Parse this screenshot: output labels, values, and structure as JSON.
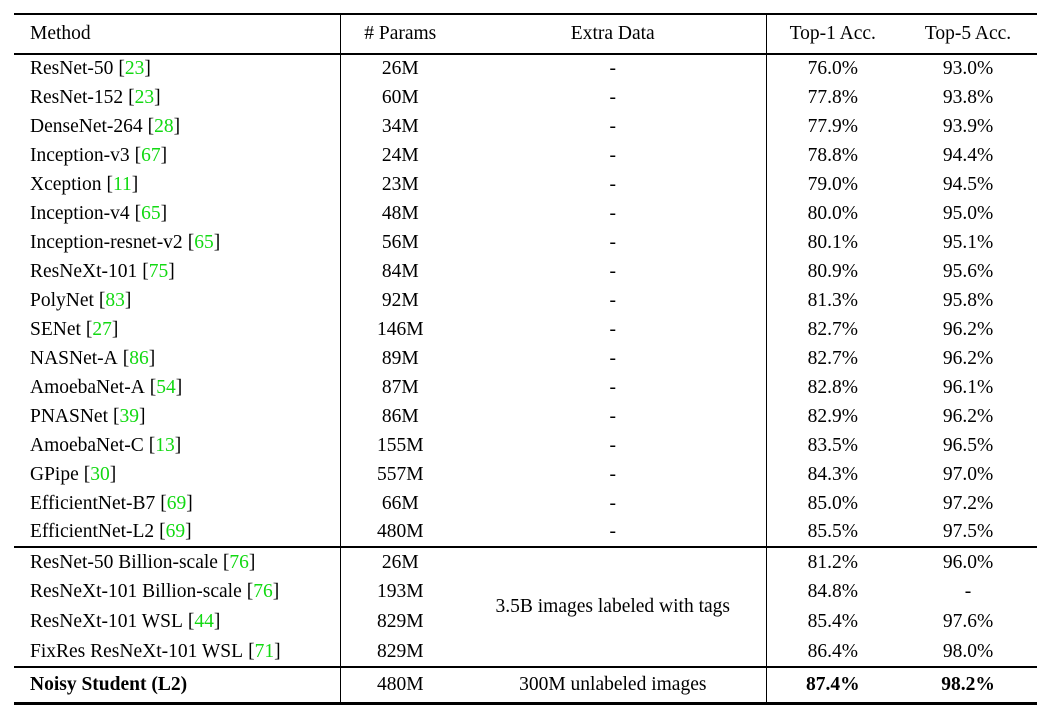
{
  "table": {
    "citation_color": "#12d912",
    "cite_brackets": [
      "[",
      "]"
    ],
    "columns": [
      "Method",
      "# Params",
      "Extra Data",
      "Top-1 Acc.",
      "Top-5 Acc."
    ],
    "sections": [
      {
        "rows": [
          {
            "method": "ResNet-50",
            "cite": "23",
            "params": "26M",
            "extra": "-",
            "top1": "76.0%",
            "top5": "93.0%"
          },
          {
            "method": "ResNet-152",
            "cite": "23",
            "params": "60M",
            "extra": "-",
            "top1": "77.8%",
            "top5": "93.8%"
          },
          {
            "method": "DenseNet-264",
            "cite": "28",
            "params": "34M",
            "extra": "-",
            "top1": "77.9%",
            "top5": "93.9%"
          },
          {
            "method": "Inception-v3",
            "cite": "67",
            "params": "24M",
            "extra": "-",
            "top1": "78.8%",
            "top5": "94.4%"
          },
          {
            "method": "Xception",
            "cite": "11",
            "params": "23M",
            "extra": "-",
            "top1": "79.0%",
            "top5": "94.5%"
          },
          {
            "method": "Inception-v4",
            "cite": "65",
            "params": "48M",
            "extra": "-",
            "top1": "80.0%",
            "top5": "95.0%"
          },
          {
            "method": "Inception-resnet-v2",
            "cite": "65",
            "params": "56M",
            "extra": "-",
            "top1": "80.1%",
            "top5": "95.1%"
          },
          {
            "method": "ResNeXt-101",
            "cite": "75",
            "params": "84M",
            "extra": "-",
            "top1": "80.9%",
            "top5": "95.6%"
          },
          {
            "method": "PolyNet",
            "cite": "83",
            "params": "92M",
            "extra": "-",
            "top1": "81.3%",
            "top5": "95.8%"
          },
          {
            "method": "SENet",
            "cite": "27",
            "params": "146M",
            "extra": "-",
            "top1": "82.7%",
            "top5": "96.2%"
          },
          {
            "method": "NASNet-A",
            "cite": "86",
            "params": "89M",
            "extra": "-",
            "top1": "82.7%",
            "top5": "96.2%"
          },
          {
            "method": "AmoebaNet-A",
            "cite": "54",
            "params": "87M",
            "extra": "-",
            "top1": "82.8%",
            "top5": "96.1%"
          },
          {
            "method": "PNASNet",
            "cite": "39",
            "params": "86M",
            "extra": "-",
            "top1": "82.9%",
            "top5": "96.2%"
          },
          {
            "method": "AmoebaNet-C",
            "cite": "13",
            "params": "155M",
            "extra": "-",
            "top1": "83.5%",
            "top5": "96.5%"
          },
          {
            "method": "GPipe",
            "cite": "30",
            "params": "557M",
            "extra": "-",
            "top1": "84.3%",
            "top5": "97.0%"
          },
          {
            "method": "EfficientNet-B7",
            "cite": "69",
            "params": "66M",
            "extra": "-",
            "top1": "85.0%",
            "top5": "97.2%"
          },
          {
            "method": "EfficientNet-L2",
            "cite": "69",
            "params": "480M",
            "extra": "-",
            "top1": "85.5%",
            "top5": "97.5%"
          }
        ]
      },
      {
        "merged_extra": "3.5B images labeled with tags",
        "rows": [
          {
            "method": "ResNet-50 Billion-scale",
            "cite": "76",
            "params": "26M",
            "top1": "81.2%",
            "top5": "96.0%"
          },
          {
            "method": "ResNeXt-101 Billion-scale",
            "cite": "76",
            "params": "193M",
            "top1": "84.8%",
            "top5": "-"
          },
          {
            "method": "ResNeXt-101 WSL",
            "cite": "44",
            "params": "829M",
            "top1": "85.4%",
            "top5": "97.6%"
          },
          {
            "method": "FixRes ResNeXt-101 WSL",
            "cite": "71",
            "params": "829M",
            "top1": "86.4%",
            "top5": "98.0%"
          }
        ]
      },
      {
        "bold": true,
        "rows": [
          {
            "method": "Noisy Student (L2)",
            "cite": null,
            "params": "480M",
            "extra": "300M unlabeled images",
            "top1": "87.4%",
            "top5": "98.2%"
          }
        ]
      }
    ]
  }
}
